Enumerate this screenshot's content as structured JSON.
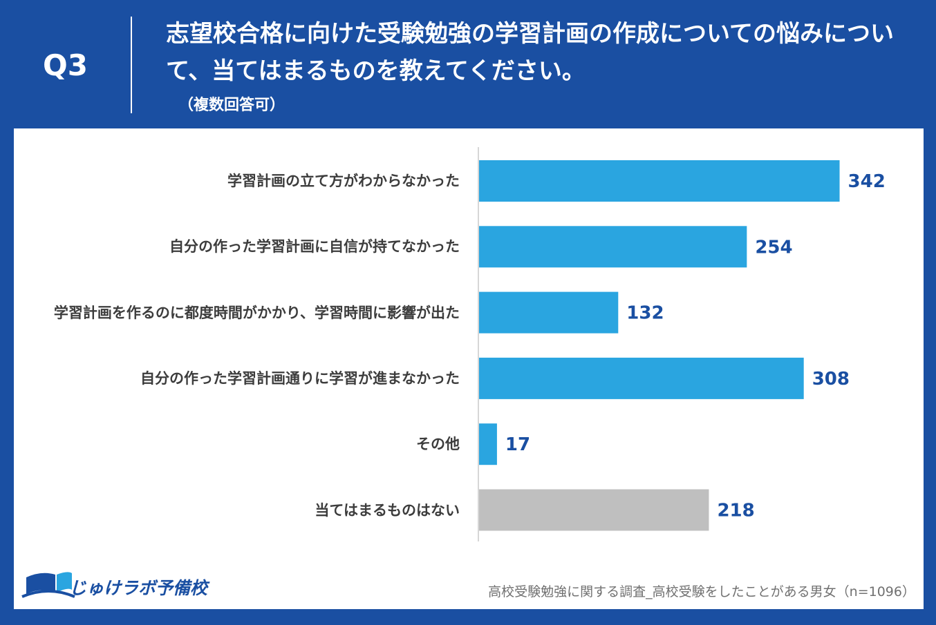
{
  "header": {
    "question_number": "Q3",
    "title": "志望校合格に向けた受験勉強の学習計画の作成についての悩みについて、当てはまるものを教えてください。",
    "note": "（複数回答可）"
  },
  "chart_data": {
    "type": "bar",
    "orientation": "horizontal",
    "categories": [
      "学習計画の立て方がわからなかった",
      "自分の作った学習計画に自信が持てなかった",
      "学習計画を作るのに都度時間がかかり、学習時間に影響が出た",
      "自分の作った学習計画通りに学習が進まなかった",
      "その他",
      "当てはまるものはない"
    ],
    "values": [
      342,
      254,
      132,
      308,
      17,
      218
    ],
    "bar_colors": [
      "#2aa5e0",
      "#2aa5e0",
      "#2aa5e0",
      "#2aa5e0",
      "#2aa5e0",
      "#bfbfbf"
    ],
    "value_label_color": "#1a4fa2",
    "xlim": [
      0,
      400
    ],
    "grid": false
  },
  "logo": {
    "text": "じゅけラボ予備校"
  },
  "source": "高校受験勉強に関する調査_高校受験をしたことがある男女（n=1096）",
  "colors": {
    "background": "#1a4fa2",
    "panel": "#ffffff"
  }
}
